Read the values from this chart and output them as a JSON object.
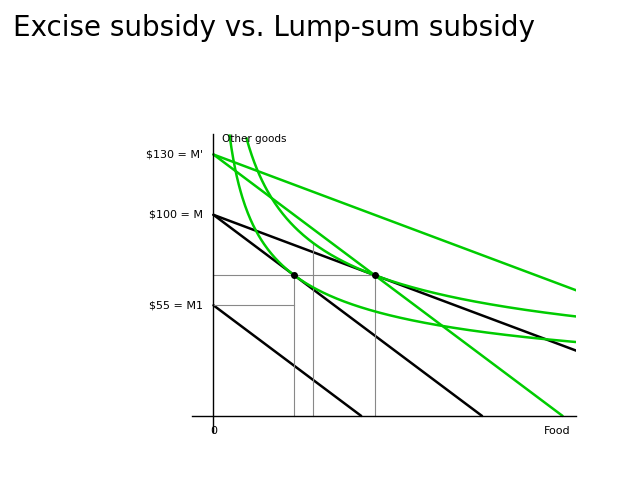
{
  "title": "Excise subsidy vs. Lump-sum subsidy",
  "title_fontsize": 20,
  "bg_color": "#ffffff",
  "M": 100,
  "M1": 55,
  "Mprime": 130,
  "a": 0.3,
  "black_line_color": "#000000",
  "green_line_color": "#00cc00",
  "gray_line_color": "#888888",
  "dot_color": "#000000",
  "axis_label_fontsize": 8,
  "ylabel_label": "Other goods",
  "xlabel_label": "Food",
  "origin_label": "0"
}
